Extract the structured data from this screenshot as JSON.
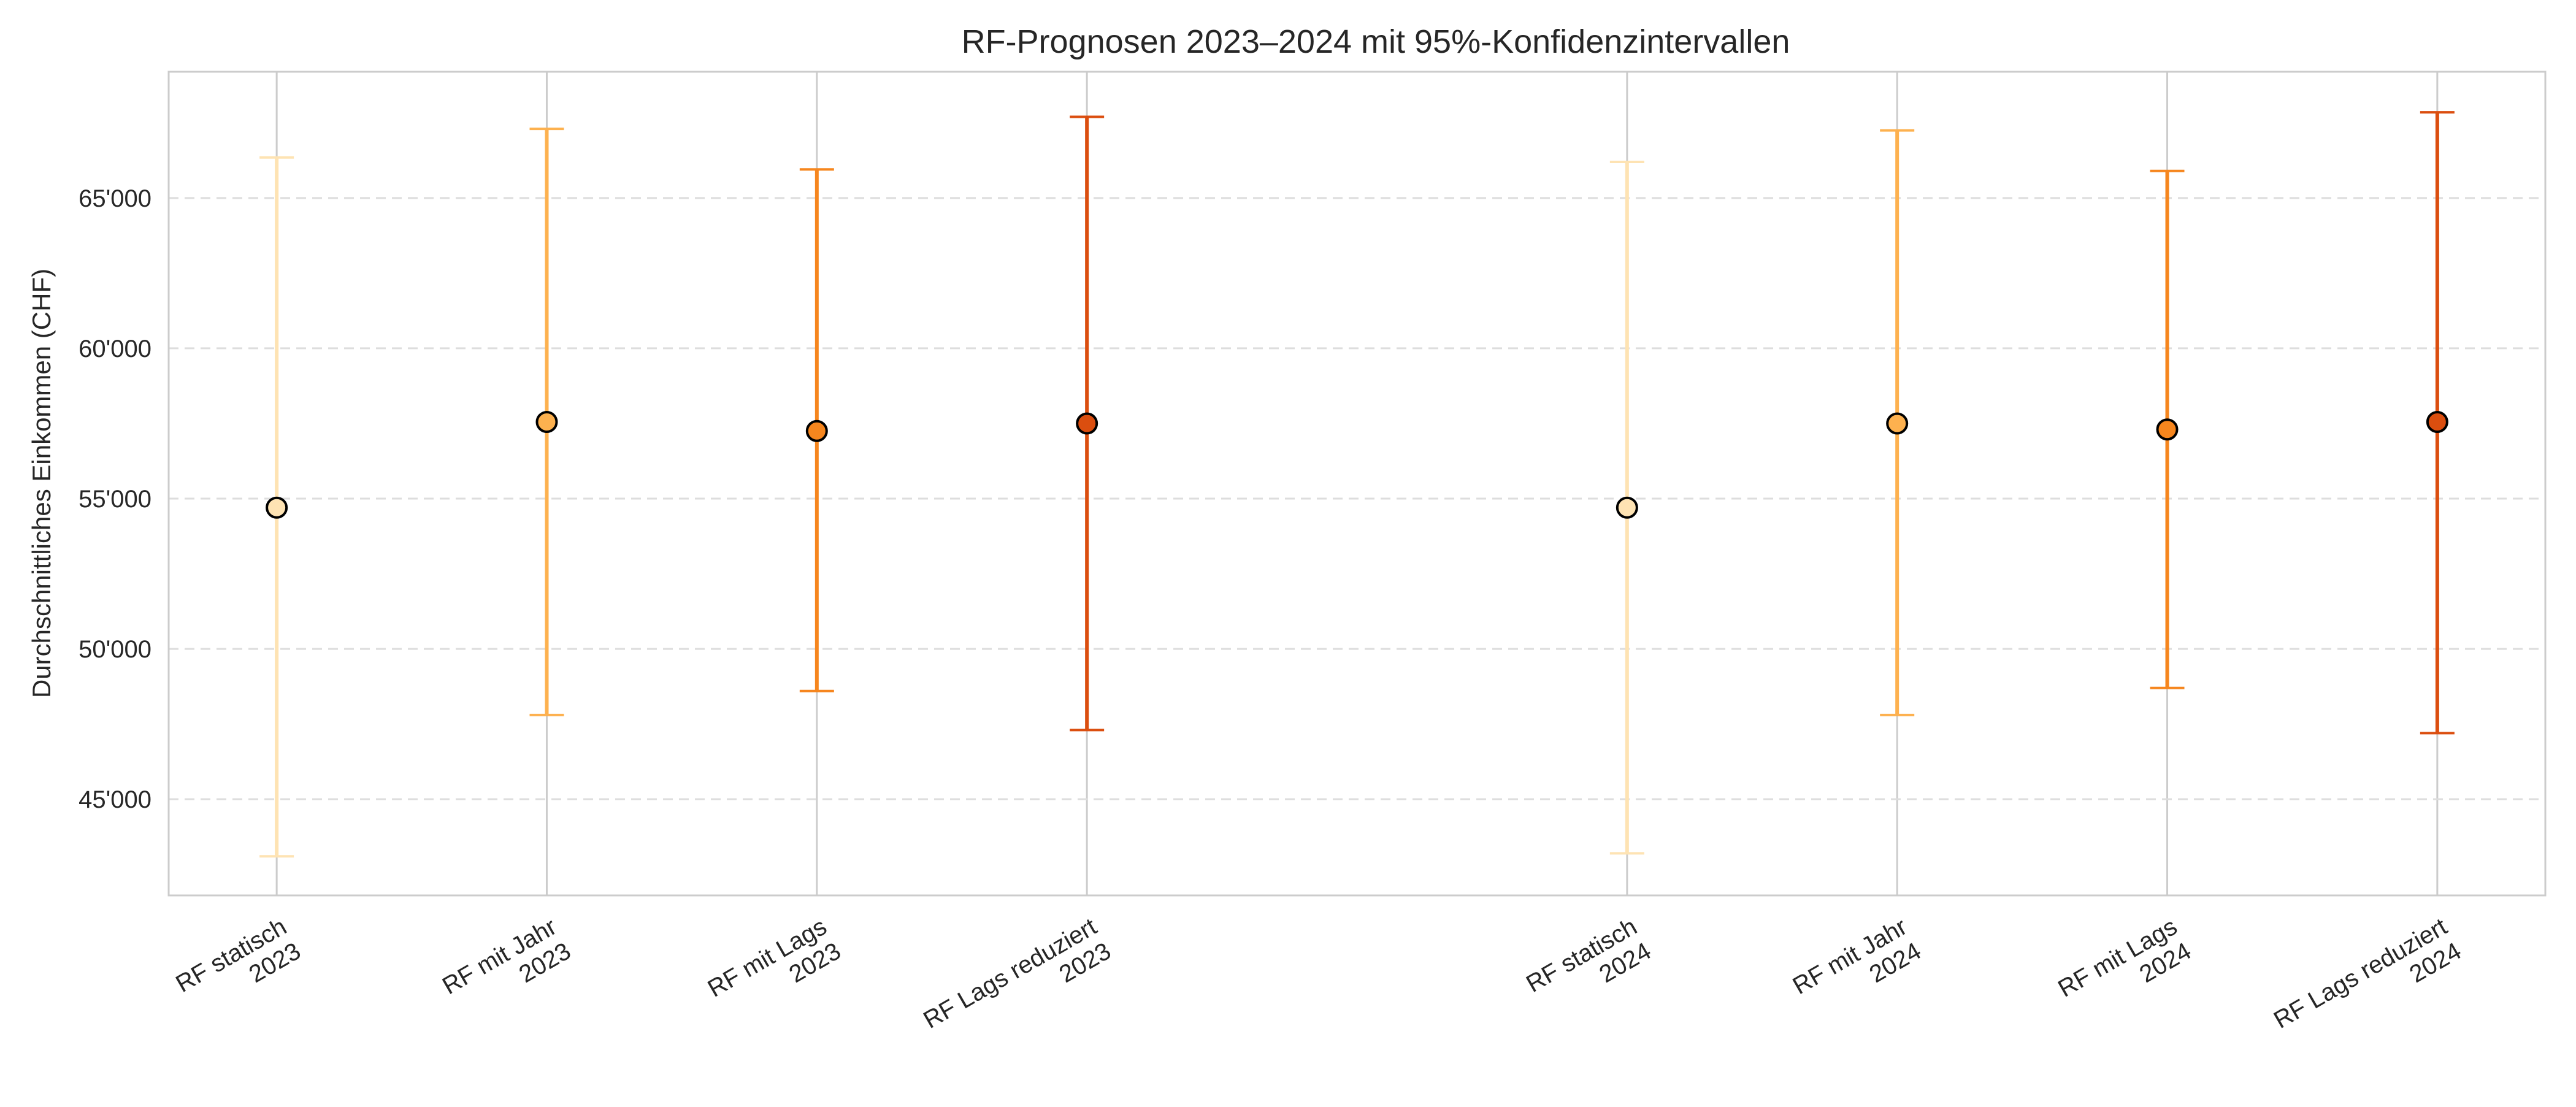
{
  "chart_data": {
    "type": "scatter",
    "title": "RF-Prognosen 2023–2024 mit 95%-Konfidenzintervallen",
    "xlabel": "",
    "ylabel": "Durchschnittliches Einkommen (CHF)",
    "ylim": [
      41800,
      69200
    ],
    "yticks": [
      "45'000",
      "50'000",
      "55'000",
      "60'000",
      "65'000"
    ],
    "ytick_values": [
      45000,
      50000,
      55000,
      60000,
      65000
    ],
    "grid": true,
    "points": [
      {
        "category": "RF statisch\n2023",
        "value": 54700,
        "lower": 43100,
        "upper": 66350,
        "color": "#fee3b3"
      },
      {
        "category": "RF mit Jahr\n2023",
        "value": 57550,
        "lower": 47800,
        "upper": 67300,
        "color": "#fdb14f"
      },
      {
        "category": "RF mit Lags\n2023",
        "value": 57250,
        "lower": 48600,
        "upper": 65950,
        "color": "#f6861e"
      },
      {
        "category": "RF Lags reduziert\n2023",
        "value": 57500,
        "lower": 47300,
        "upper": 67700,
        "color": "#db4e0f"
      },
      {
        "category": "RF statisch\n2024",
        "value": 54700,
        "lower": 43200,
        "upper": 66200,
        "color": "#fee3b3"
      },
      {
        "category": "RF mit Jahr\n2024",
        "value": 57500,
        "lower": 47800,
        "upper": 67250,
        "color": "#fdb14f"
      },
      {
        "category": "RF mit Lags\n2024",
        "value": 57300,
        "lower": 48700,
        "upper": 65900,
        "color": "#f6861e"
      },
      {
        "category": "RF Lags reduziert\n2024",
        "value": 57550,
        "lower": 47200,
        "upper": 67850,
        "color": "#db4e0f"
      }
    ],
    "x_positions": [
      0,
      1,
      2,
      3,
      5,
      6,
      7,
      8
    ],
    "xlim": [
      -0.4,
      8.4
    ]
  }
}
